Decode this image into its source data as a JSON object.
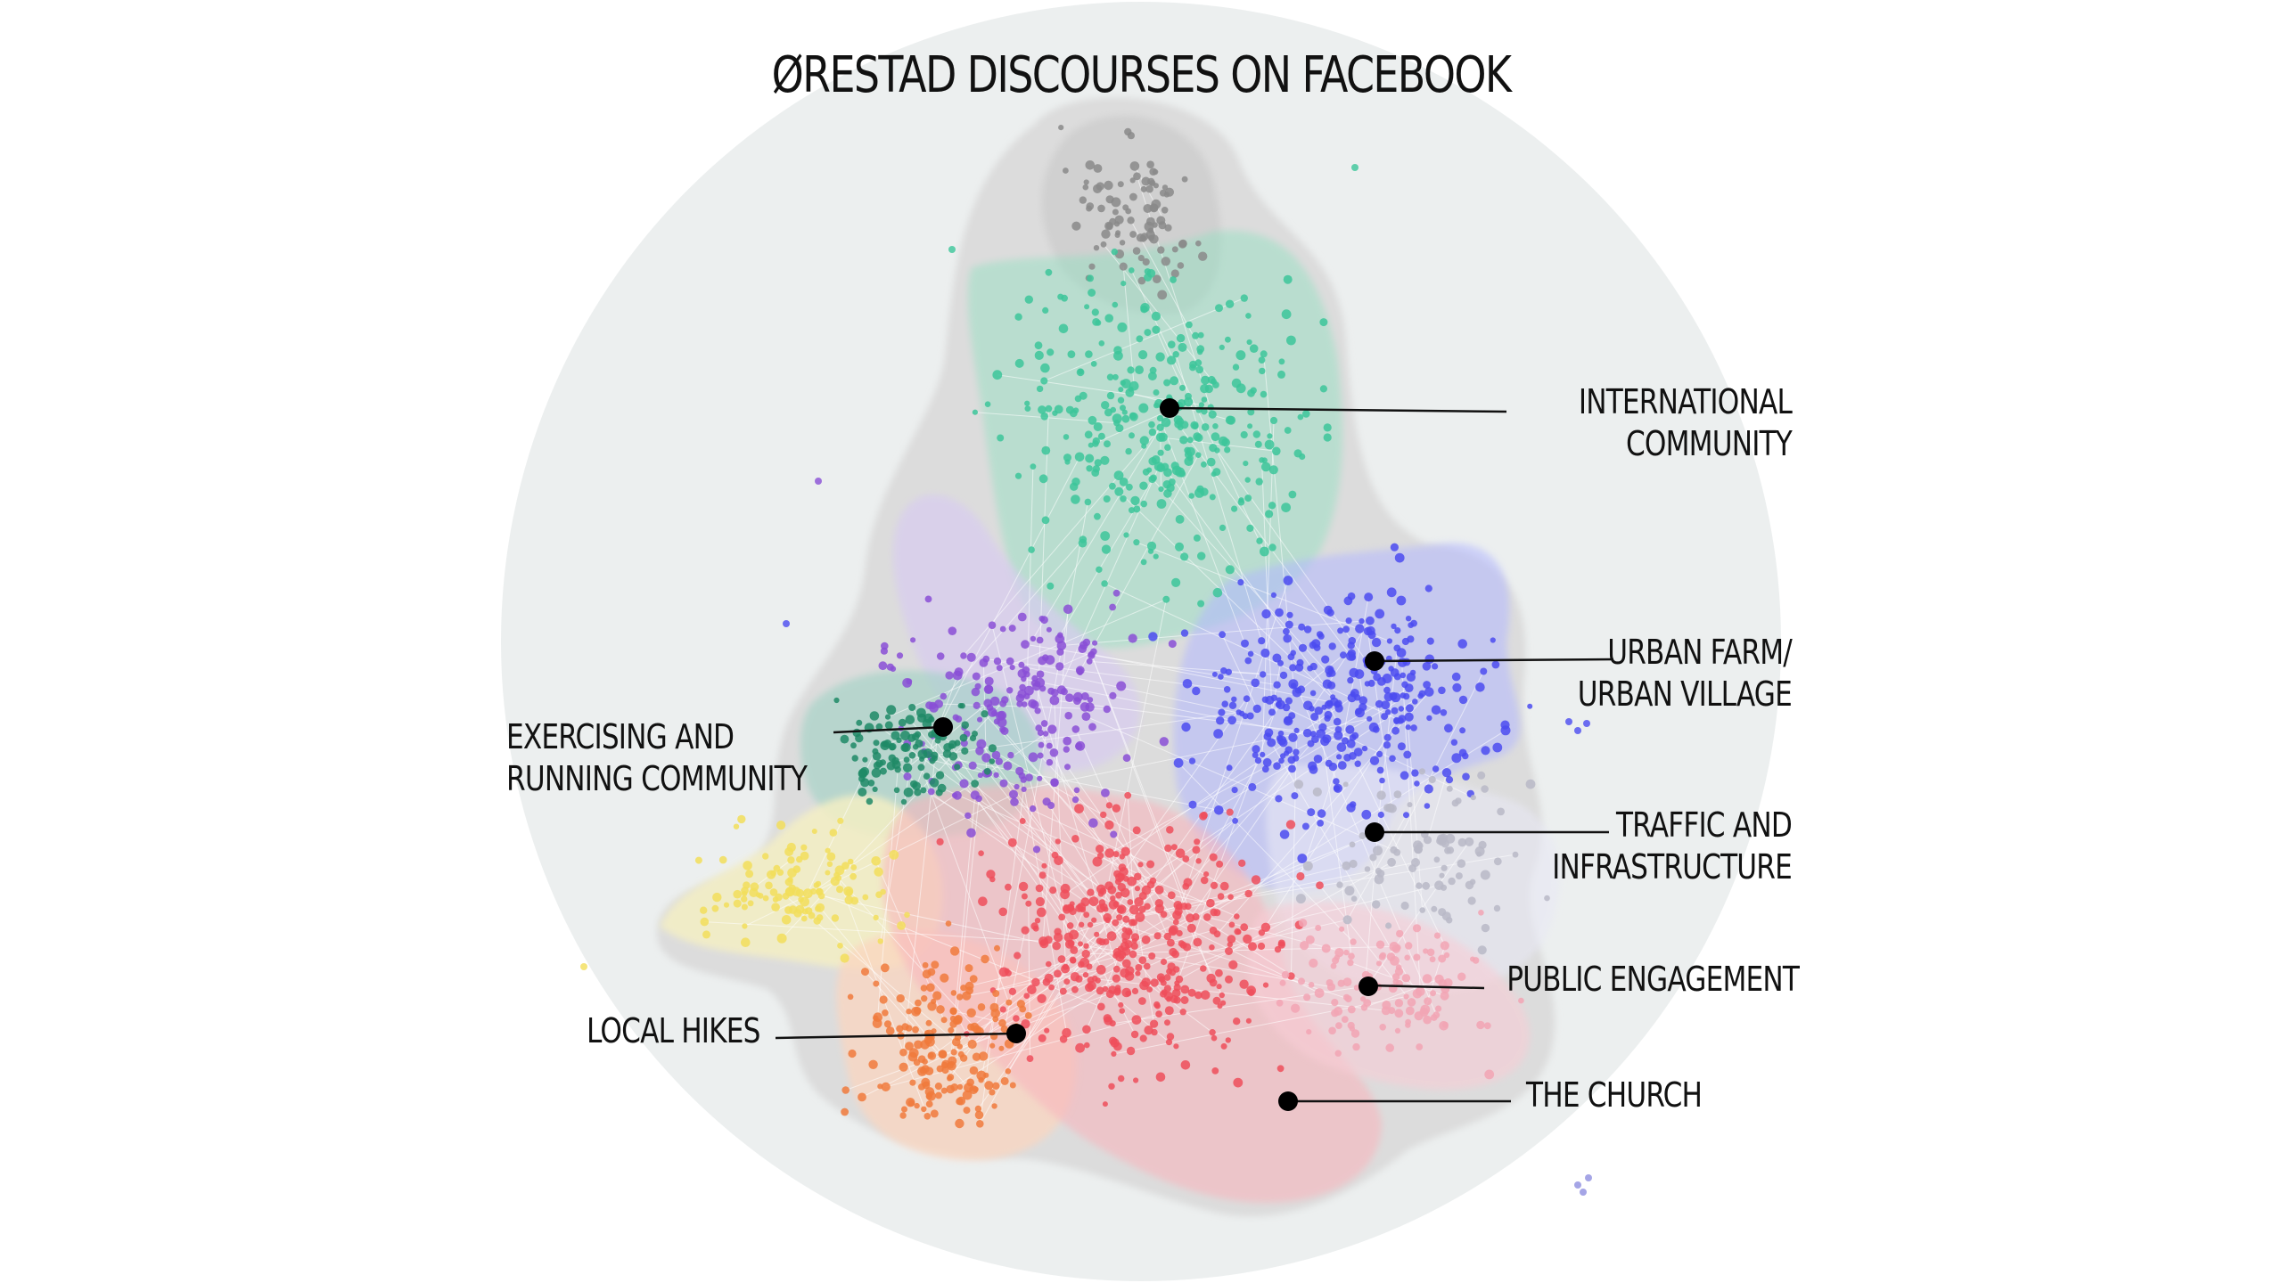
{
  "title": "ØRESTAD DISCOURSES ON FACEBOOK",
  "clusters": {
    "international": {
      "line1": "INTERNATIONAL",
      "line2": "COMMUNITY",
      "color": "#8fe0c0",
      "dot": "#3cc59a"
    },
    "urban_farm": {
      "line1": "URBAN FARM/",
      "line2": "URBAN VILLAGE",
      "color": "#b3b8ff",
      "dot": "#4b4bf0"
    },
    "exercising": {
      "line1": "EXERCISING AND",
      "line2": "RUNNING COMMUNITY",
      "color": "#9fd2c4",
      "dot": "#1f8a66"
    },
    "traffic": {
      "line1": "TRAFFIC AND",
      "line2": "INFRASTRUCTURE",
      "color": "#e8e8f4",
      "dot": "#b9b9c7"
    },
    "public": {
      "line1": "PUBLIC ENGAGEMENT",
      "color": "#f8cdd6",
      "dot": "#f2a4b4"
    },
    "hikes": {
      "line1": "LOCAL HIKES",
      "color": "#fbd6c0",
      "dot": "#f07a3c"
    },
    "church": {
      "line1": "THE CHURCH",
      "color": "#f8b6bd",
      "dot": "#ee4e5b"
    },
    "gray": {
      "color": "#cfcfcf",
      "dot": "#8a8a8a"
    },
    "yellow": {
      "color": "#f4efc4",
      "dot": "#f2de5a"
    },
    "purple": {
      "color": "#d8ccf0",
      "dot": "#8a4fd6"
    }
  },
  "colors": {
    "background_circle": "#ecefef",
    "network_hull": "#dcdcdc",
    "leader_line": "#111111"
  }
}
